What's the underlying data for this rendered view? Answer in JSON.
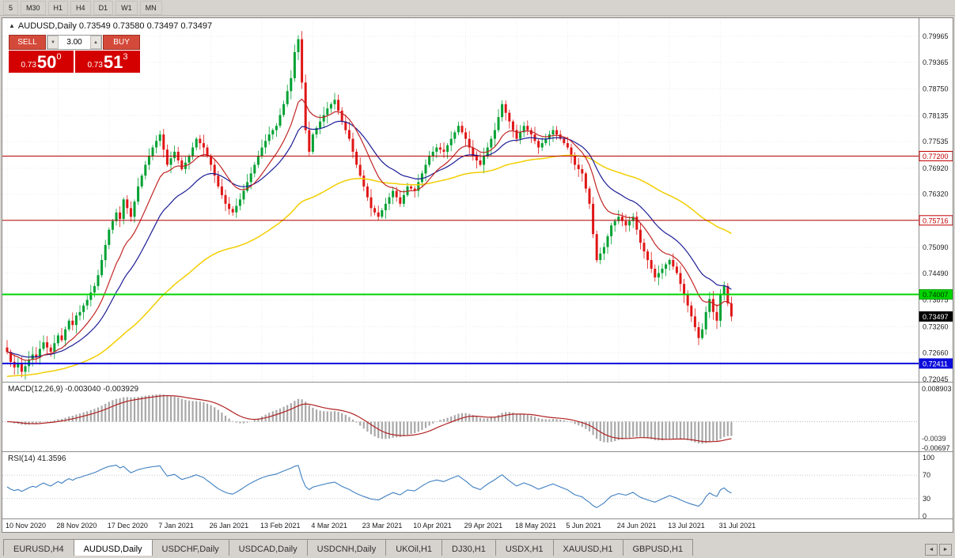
{
  "toolbar": {
    "periods": [
      "5",
      "M30",
      "H1",
      "H4",
      "D1",
      "W1",
      "MN"
    ]
  },
  "window": {
    "symbol_line": "AUDUSD,Daily 0.73549 0.73580 0.73497 0.73497"
  },
  "trade_panel": {
    "sell_label": "SELL",
    "buy_label": "BUY",
    "volume": "3.00",
    "bid": {
      "prefix": "0.73",
      "big": "50",
      "pip": "0"
    },
    "ask": {
      "prefix": "0.73",
      "big": "51",
      "pip": "3"
    }
  },
  "icons": {
    "symbol_direction": "▲",
    "stepper_down": "▼",
    "stepper_up": "▲",
    "tab_scroll_left": "◄",
    "tab_scroll_right": "►"
  },
  "indicators": {
    "macd": {
      "label": "MACD(12,26,9) -0.003040 -0.003929",
      "axis_top": "0.008903",
      "axis_bottom": "-0.00697",
      "current_tag": "-0.0039"
    },
    "rsi": {
      "label": "RSI(14) 41.3596",
      "axis": [
        100,
        70,
        30,
        0
      ],
      "levels": [
        70,
        30
      ]
    }
  },
  "tabs": {
    "active": "AUDUSD,Daily",
    "items": [
      "EURUSD,H4",
      "AUDUSD,Daily",
      "USDCHF,Daily",
      "USDCAD,Daily",
      "USDCNH,Daily",
      "UKOil,H1",
      "DJ30,H1",
      "USDX,H1",
      "XAUUSD,H1",
      "GBPUSD,H1"
    ]
  },
  "chart_data": {
    "type": "candlestick",
    "symbol": "AUDUSD",
    "timeframe": "Daily",
    "quote": {
      "open": 0.73549,
      "high": 0.7358,
      "low": 0.73497,
      "close": 0.73497
    },
    "price_axis": [
      "0.79965",
      "0.79365",
      "0.78750",
      "0.78135",
      "0.77535",
      "0.76920",
      "0.76320",
      "0.75705",
      "0.75090",
      "0.74490",
      "0.73875",
      "0.73260",
      "0.72660",
      "0.72045"
    ],
    "x_labels": [
      "10 Nov 2020",
      "28 Nov 2020",
      "17 Dec 2020",
      "7 Jan 2021",
      "26 Jan 2021",
      "13 Feb 2021",
      "4 Mar 2021",
      "23 Mar 2021",
      "10 Apr 2021",
      "29 Apr 2021",
      "18 May 2021",
      "5 Jun 2021",
      "24 Jun 2021",
      "13 Jul 2021",
      "31 Jul 2021"
    ],
    "candles_per_label": 14,
    "closes": [
      0.7268,
      0.7245,
      0.7232,
      0.724,
      0.7222,
      0.7235,
      0.725,
      0.7262,
      0.7255,
      0.7275,
      0.729,
      0.7278,
      0.7268,
      0.7288,
      0.7306,
      0.7295,
      0.732,
      0.734,
      0.733,
      0.7352,
      0.736,
      0.7375,
      0.7388,
      0.7405,
      0.742,
      0.7445,
      0.748,
      0.7515,
      0.755,
      0.757,
      0.759,
      0.7575,
      0.762,
      0.76,
      0.758,
      0.7615,
      0.765,
      0.7675,
      0.77,
      0.772,
      0.774,
      0.7755,
      0.777,
      0.7735,
      0.77,
      0.7715,
      0.773,
      0.771,
      0.769,
      0.7705,
      0.772,
      0.774,
      0.776,
      0.775,
      0.774,
      0.772,
      0.77,
      0.7675,
      0.765,
      0.763,
      0.761,
      0.7598,
      0.759,
      0.7605,
      0.762,
      0.764,
      0.766,
      0.768,
      0.77,
      0.772,
      0.774,
      0.7755,
      0.777,
      0.778,
      0.779,
      0.7815,
      0.784,
      0.787,
      0.79,
      0.796,
      0.799,
      0.789,
      0.778,
      0.773,
      0.777,
      0.7785,
      0.78,
      0.7815,
      0.783,
      0.784,
      0.785,
      0.7825,
      0.78,
      0.778,
      0.776,
      0.773,
      0.77,
      0.7675,
      0.765,
      0.7625,
      0.76,
      0.759,
      0.758,
      0.7595,
      0.761,
      0.7625,
      0.764,
      0.7625,
      0.761,
      0.763,
      0.765,
      0.7645,
      0.764,
      0.766,
      0.768,
      0.77,
      0.772,
      0.773,
      0.774,
      0.7735,
      0.773,
      0.7745,
      0.776,
      0.7775,
      0.779,
      0.7775,
      0.776,
      0.774,
      0.772,
      0.771,
      0.77,
      0.772,
      0.774,
      0.776,
      0.778,
      0.781,
      0.784,
      0.782,
      0.78,
      0.778,
      0.776,
      0.7775,
      0.779,
      0.778,
      0.777,
      0.7755,
      0.774,
      0.775,
      0.776,
      0.777,
      0.778,
      0.777,
      0.776,
      0.775,
      0.774,
      0.772,
      0.77,
      0.769,
      0.768,
      0.7645,
      0.761,
      0.754,
      0.748,
      0.7495,
      0.751,
      0.7535,
      0.756,
      0.757,
      0.758,
      0.757,
      0.756,
      0.757,
      0.758,
      0.755,
      0.752,
      0.75,
      0.748,
      0.746,
      0.744,
      0.745,
      0.746,
      0.747,
      0.748,
      0.7465,
      0.745,
      0.7425,
      0.74,
      0.7375,
      0.735,
      0.7325,
      0.73,
      0.732,
      0.736,
      0.739,
      0.736,
      0.734,
      0.74,
      0.742,
      0.738,
      0.73497
    ],
    "hlines": [
      {
        "value": 0.772,
        "label": "0.77200",
        "line_color": "#b40000",
        "line_width": 1,
        "tag_bg": "#ffffff",
        "tag_fg": "#c00000",
        "tag_border": "#c00000"
      },
      {
        "value": 0.75716,
        "label": "0.75716",
        "line_color": "#b40000",
        "line_width": 1,
        "tag_bg": "#ffffff",
        "tag_fg": "#c00000",
        "tag_border": "#c00000"
      },
      {
        "value": 0.74007,
        "label": "0.74007",
        "line_color": "#00d400",
        "line_width": 2,
        "tag_bg": "#00d400",
        "tag_fg": "#002b00",
        "tag_border": "#00a000"
      },
      {
        "value": 0.72411,
        "label": "0.72411",
        "line_color": "#0c0cdb",
        "line_width": 2,
        "tag_bg": "#0c0cdb",
        "tag_fg": "#ffffff",
        "tag_border": "#0c0cdb"
      }
    ],
    "current_price": {
      "value": 0.73497,
      "label": "0.73497",
      "tag_bg": "#000000",
      "tag_fg": "#ffffff"
    },
    "colors": {
      "up": "#00a132",
      "down": "#e01616",
      "ma_fast": "#c22525",
      "ma_mid": "#1c1c96",
      "ma_slow": "#f2ce00",
      "macd_histogram": "#a8a8a8",
      "macd_signal": "#b02222",
      "rsi_line": "#3e7fc1",
      "grid": "#ececec"
    }
  }
}
